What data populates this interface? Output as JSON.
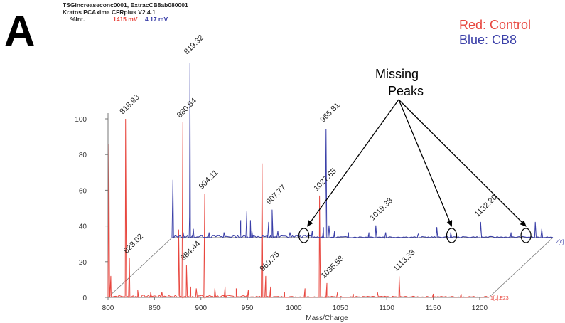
{
  "header": {
    "line1": "TSGincreaseconc0001, ExtracCB8ab080001",
    "line2": "Kratos PCAxima CFRplus V2.4.1",
    "ylabel": "%Int.",
    "red_mv": "1415 mV",
    "blue_mv": "4 17 mV"
  },
  "panel_letter": "A",
  "legend": {
    "red": "Red: Control",
    "blue": "Blue: CB8"
  },
  "colors": {
    "red": "#e8473f",
    "blue": "#3a3fa8",
    "grid": "#777777"
  },
  "chart_data": {
    "type": "line",
    "xlabel": "Mass/Charge",
    "xlim": [
      800,
      1210
    ],
    "ylim": [
      0,
      100
    ],
    "x_ticks": [
      800,
      850,
      900,
      950,
      1000,
      1050,
      1100,
      1150,
      1200
    ],
    "y_ticks": [
      0,
      20,
      40,
      60,
      80,
      100
    ],
    "trace_labels": {
      "red": "1[c].E23",
      "blue": "2[c]."
    },
    "annotation": {
      "text": "Missing Peaks",
      "line1": "Missing",
      "line2": "Peaks",
      "targets": [
        942,
        1101,
        1181
      ]
    },
    "series": [
      {
        "color": "red",
        "peaks": [
          {
            "mz": 801,
            "h": 86
          },
          {
            "mz": 803,
            "h": 12
          },
          {
            "mz": 818.93,
            "h": 100
          },
          {
            "mz": 823.02,
            "h": 22
          },
          {
            "mz": 832,
            "h": 4
          },
          {
            "mz": 846,
            "h": 3
          },
          {
            "mz": 858,
            "h": 3
          },
          {
            "mz": 876,
            "h": 38
          },
          {
            "mz": 880.54,
            "h": 98
          },
          {
            "mz": 884.44,
            "h": 18
          },
          {
            "mz": 889,
            "h": 6
          },
          {
            "mz": 895,
            "h": 5
          },
          {
            "mz": 904.11,
            "h": 58
          },
          {
            "mz": 915,
            "h": 5
          },
          {
            "mz": 926,
            "h": 6
          },
          {
            "mz": 938,
            "h": 5
          },
          {
            "mz": 951,
            "h": 4
          },
          {
            "mz": 965.81,
            "h": 75
          },
          {
            "mz": 969.75,
            "h": 12
          },
          {
            "mz": 975,
            "h": 6
          },
          {
            "mz": 990,
            "h": 3
          },
          {
            "mz": 1012,
            "h": 5
          },
          {
            "mz": 1027.65,
            "h": 57
          },
          {
            "mz": 1035.58,
            "h": 8
          },
          {
            "mz": 1047,
            "h": 3
          },
          {
            "mz": 1064,
            "h": 2
          },
          {
            "mz": 1090,
            "h": 3
          },
          {
            "mz": 1113.33,
            "h": 12
          },
          {
            "mz": 1150,
            "h": 2
          },
          {
            "mz": 1180,
            "h": 2
          }
        ],
        "labels": [
          {
            "text": "818.93",
            "mz": 818.93
          },
          {
            "text": "880.54",
            "mz": 880.54
          },
          {
            "text": "904.11",
            "mz": 904.11
          },
          {
            "text": "1027.65",
            "mz": 1027.65
          },
          {
            "text": "823.02",
            "mz": 823.02
          },
          {
            "text": "884.44",
            "mz": 884.44
          },
          {
            "text": "969.75",
            "mz": 969.75
          },
          {
            "text": "1035.58",
            "mz": 1035.58
          },
          {
            "text": "1113.33",
            "mz": 1113.33
          }
        ]
      },
      {
        "color": "blue",
        "peaks": [
          {
            "mz": 801,
            "h": 33
          },
          {
            "mz": 812,
            "h": 3
          },
          {
            "mz": 818.93,
            "h": 12
          },
          {
            "mz": 823,
            "h": 5
          },
          {
            "mz": 840,
            "h": 3
          },
          {
            "mz": 856,
            "h": 3
          },
          {
            "mz": 874,
            "h": 10
          },
          {
            "mz": 880.54,
            "h": 15
          },
          {
            "mz": 884.44,
            "h": 10
          },
          {
            "mz": 886,
            "h": 4
          },
          {
            "mz": 819.32,
            "h": 100
          },
          {
            "mz": 904,
            "h": 9
          },
          {
            "mz": 907.77,
            "h": 16
          },
          {
            "mz": 914,
            "h": 4
          },
          {
            "mz": 927,
            "h": 3
          },
          {
            "mz": 951,
            "h": 4
          },
          {
            "mz": 963,
            "h": 6
          },
          {
            "mz": 965.81,
            "h": 62
          },
          {
            "mz": 969,
            "h": 7
          },
          {
            "mz": 975,
            "h": 4
          },
          {
            "mz": 990,
            "h": 3
          },
          {
            "mz": 1012,
            "h": 3
          },
          {
            "mz": 1019.38,
            "h": 7
          },
          {
            "mz": 1030,
            "h": 3
          },
          {
            "mz": 1065,
            "h": 2
          },
          {
            "mz": 1085,
            "h": 6
          },
          {
            "mz": 1100,
            "h": 3
          },
          {
            "mz": 1132.2,
            "h": 9
          },
          {
            "mz": 1165,
            "h": 3
          },
          {
            "mz": 1191,
            "h": 9
          },
          {
            "mz": 1198,
            "h": 5
          }
        ],
        "labels": [
          {
            "text": "819.32",
            "mz": 819.32
          },
          {
            "text": "965.81",
            "mz": 965.81
          },
          {
            "text": "907.77",
            "mz": 907.77
          },
          {
            "text": "1019.38",
            "mz": 1019.38
          },
          {
            "text": "1132.20",
            "mz": 1132.2
          }
        ]
      }
    ]
  }
}
